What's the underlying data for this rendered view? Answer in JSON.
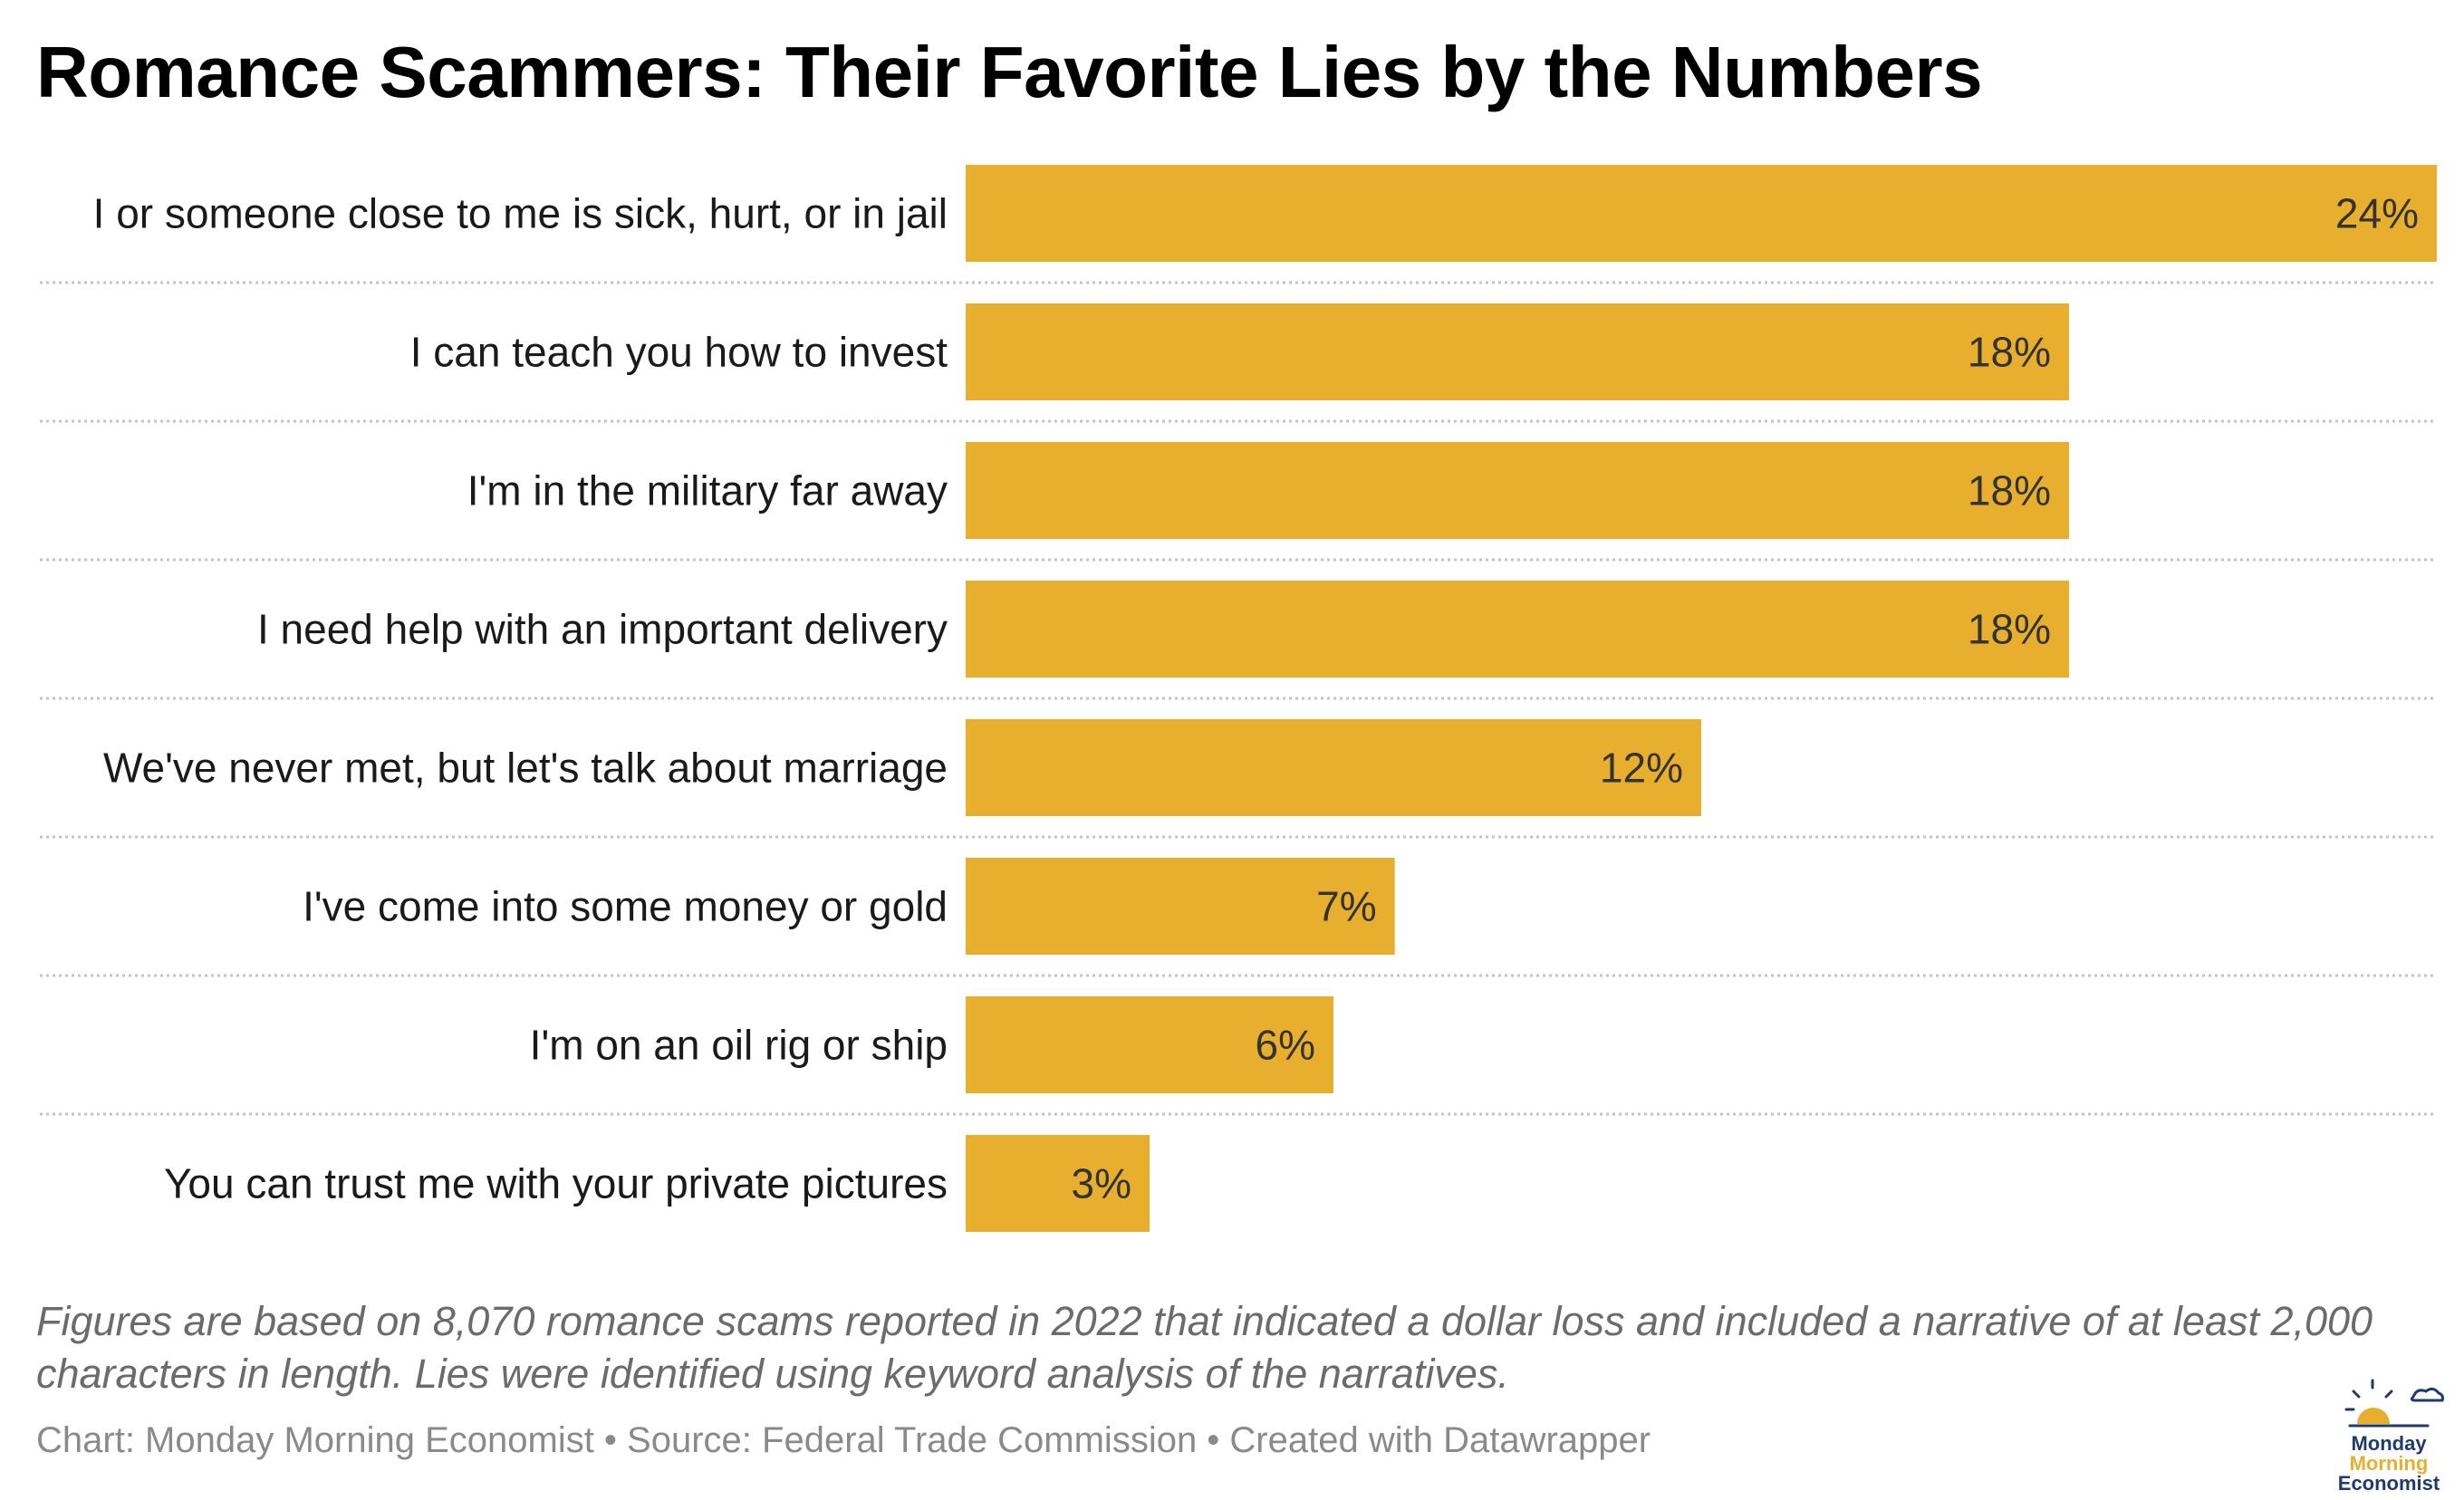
{
  "title": "Romance Scammers: Their Favorite Lies by the Numbers",
  "note": "Figures are based on 8,070 romance scams reported in 2022 that indicated a dollar loss and included a narrative of at least 2,000 characters in length. Lies were identified using keyword analysis of the narratives.",
  "credits": "Chart: Monday Morning Economist • Source: Federal Trade Commission • Created with Datawrapper",
  "logo": {
    "line1": "Monday",
    "line2": "Morning",
    "line3": "Economist"
  },
  "colors": {
    "bar": "#E8AF2F",
    "logo_blue": "#1f3a6e",
    "logo_gold": "#E8AF2F"
  },
  "chart_data": {
    "type": "bar",
    "orientation": "horizontal",
    "categories": [
      "I or someone close to me is sick, hurt, or in jail",
      "I can teach you how to invest",
      "I'm in the military far away",
      "I need help with an important delivery",
      "We've never met, but let's talk about marriage",
      "I've come into some money or gold",
      "I'm on an oil rig or ship",
      "You can trust me with your private pictures"
    ],
    "values": [
      24,
      18,
      18,
      18,
      12,
      7,
      6,
      3
    ],
    "value_labels": [
      "24%",
      "18%",
      "18%",
      "18%",
      "12%",
      "7%",
      "6%",
      "3%"
    ],
    "unit": "%",
    "xlim": [
      0,
      24
    ],
    "grid": false,
    "row_separators": "dotted"
  }
}
